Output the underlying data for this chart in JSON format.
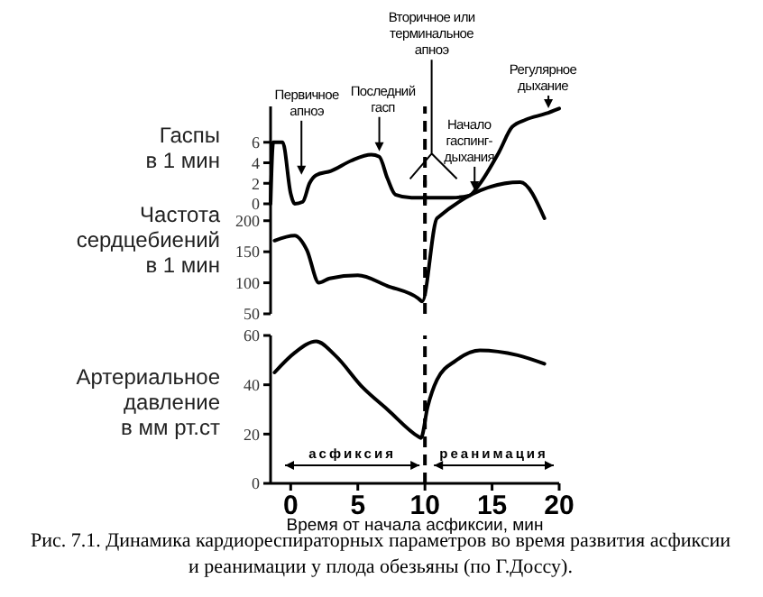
{
  "chart_data": [
    {
      "type": "line",
      "ylabel": "Гаспы\nв 1 мин",
      "xlim": [
        -1.5,
        20
      ],
      "ylim": [
        0,
        9.5
      ],
      "yticks": [
        0,
        2,
        4,
        6
      ],
      "tick_labels": "y",
      "grid": false,
      "marker": "none",
      "line_style": "solid",
      "series": [
        {
          "color": "#000000",
          "x": [
            -1.5,
            -1.3,
            -0.6,
            0.0,
            0.3,
            0.9,
            1.4,
            1.9,
            3,
            4.5,
            6,
            6.6,
            7.2,
            7.8,
            9,
            12,
            13.3,
            14,
            15.5,
            16.5,
            17.5,
            19,
            20
          ],
          "values": [
            0,
            6,
            6,
            1,
            0,
            0.2,
            2,
            2.8,
            3.2,
            4.2,
            4.8,
            4.6,
            2.5,
            0.9,
            0.6,
            0.6,
            0.8,
            1.8,
            5,
            7.5,
            8.2,
            8.8,
            9.3
          ]
        }
      ],
      "ref_lines": [
        {
          "axis": "x",
          "value": 10,
          "line_style": "dashed",
          "color": "#000000"
        }
      ],
      "annotations": [
        {
          "text": "Первичное\nапноэ",
          "x": 0.8,
          "y": 2.3
        },
        {
          "text": "Последний\nгасп",
          "x": 6.6,
          "y": 4.6
        },
        {
          "text": "Вторичное или\nтерминальное\nапноэ",
          "x": 10.5,
          "y": 4.9
        },
        {
          "text": "Начало\nгаспинг-\nдыхания",
          "x": 13.7,
          "y": 0.8
        },
        {
          "text": "Регулярное\nдыхание",
          "x": 19.2,
          "y": 8.8
        }
      ]
    },
    {
      "type": "line",
      "ylabel": "Частота\nсердцебиений\nв 1 мин",
      "xlim": [
        -1.5,
        20
      ],
      "ylim": [
        50,
        265
      ],
      "yticks": [
        50,
        100,
        150,
        200
      ],
      "tick_labels": "y",
      "grid": false,
      "marker": "none",
      "line_style": "solid",
      "series": [
        {
          "color": "#000000",
          "x": [
            -1.2,
            0.3,
            1.2,
            2.1,
            2.9,
            5,
            7.2,
            9.5,
            9.8,
            10.9,
            17.1,
            18.9
          ],
          "values": [
            168,
            176,
            153,
            100,
            107,
            112,
            95,
            75,
            70,
            204,
            262,
            204
          ]
        }
      ],
      "ref_lines": [
        {
          "axis": "x",
          "value": 10,
          "line_style": "dashed",
          "color": "#000000"
        }
      ]
    },
    {
      "type": "line",
      "ylabel": "Артериальное\nдавление\nв мм рт.ст",
      "xlabel": "Время от начала асфиксии, мин",
      "xlim": [
        -1.5,
        20
      ],
      "ylim": [
        0,
        60
      ],
      "xticks": [
        0,
        5,
        10,
        15,
        20
      ],
      "yticks": [
        0,
        20,
        40,
        60
      ],
      "grid": false,
      "marker": "none",
      "line_style": "solid",
      "series": [
        {
          "color": "#000000",
          "x": [
            -1.2,
            0.3,
            1.9,
            3.3,
            5.4,
            7.2,
            9.5,
            9.7,
            10.2,
            10.9,
            12.3,
            14.1,
            16.9,
            18.9
          ],
          "values": [
            45,
            53,
            57.6,
            52,
            38.7,
            30,
            19,
            18.4,
            31,
            42,
            49.8,
            54,
            52,
            48.5
          ]
        }
      ],
      "ref_lines": [
        {
          "axis": "x",
          "value": 10,
          "line_style": "dashed",
          "color": "#000000"
        }
      ],
      "annotations": [
        "асфиксия",
        "реанимация",
        "Рис. 7.1. Динамика кардиореспираторных параметров во время развития асфиксии и реанимации у плода обезьяны (по Г.Доссу)."
      ]
    }
  ]
}
